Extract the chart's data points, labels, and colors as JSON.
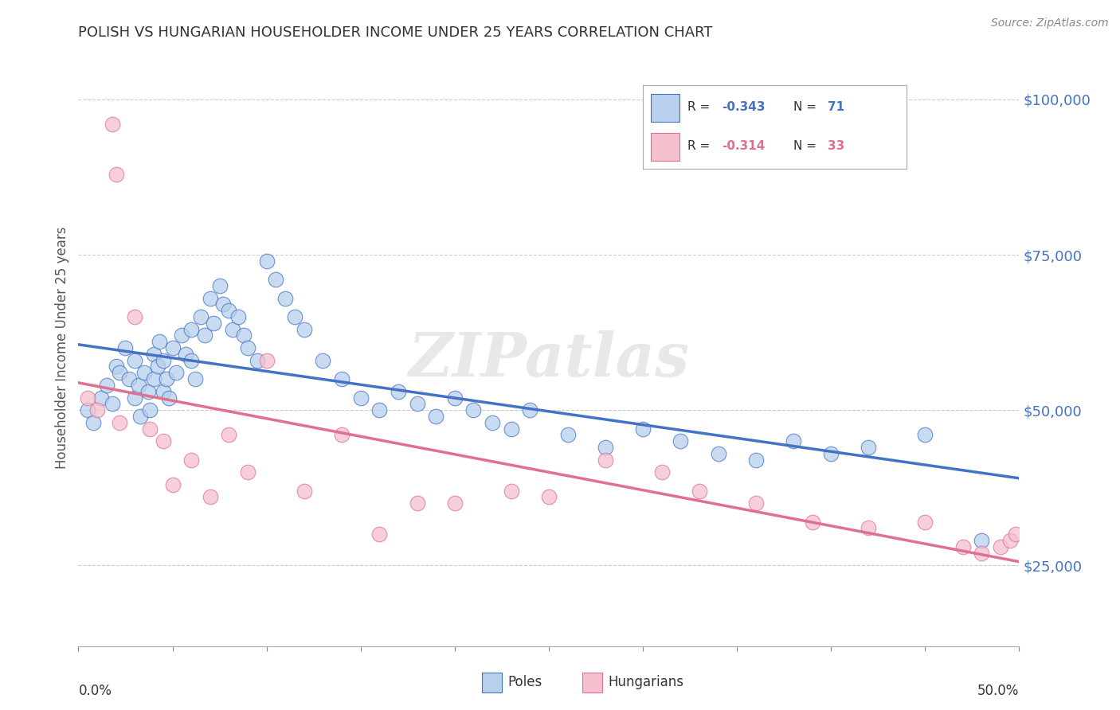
{
  "title": "POLISH VS HUNGARIAN HOUSEHOLDER INCOME UNDER 25 YEARS CORRELATION CHART",
  "source": "Source: ZipAtlas.com",
  "ylabel": "Householder Income Under 25 years",
  "xlim": [
    0.0,
    0.5
  ],
  "ylim": [
    12000,
    108000
  ],
  "yticks": [
    25000,
    50000,
    75000,
    100000
  ],
  "ytick_labels": [
    "$25,000",
    "$50,000",
    "$75,000",
    "$100,000"
  ],
  "legend_r_polish": "-0.343",
  "legend_n_polish": "71",
  "legend_r_hungarian": "-0.314",
  "legend_n_hungarian": "33",
  "polish_fill": "#b8d0eb",
  "hungarian_fill": "#f5c0ce",
  "polish_edge": "#4472c4",
  "hungarian_edge": "#e07090",
  "polish_line": "#4472c4",
  "hungarian_line": "#e07090",
  "bg": "#ffffff",
  "grid_color": "#cccccc",
  "title_color": "#333333",
  "source_color": "#888888",
  "ytick_color": "#4472c4",
  "watermark": "ZIPatlas",
  "poles_x": [
    0.005,
    0.008,
    0.012,
    0.015,
    0.018,
    0.02,
    0.022,
    0.025,
    0.027,
    0.03,
    0.03,
    0.032,
    0.033,
    0.035,
    0.037,
    0.038,
    0.04,
    0.04,
    0.042,
    0.043,
    0.045,
    0.045,
    0.047,
    0.048,
    0.05,
    0.052,
    0.055,
    0.057,
    0.06,
    0.06,
    0.062,
    0.065,
    0.067,
    0.07,
    0.072,
    0.075,
    0.077,
    0.08,
    0.082,
    0.085,
    0.088,
    0.09,
    0.095,
    0.1,
    0.105,
    0.11,
    0.115,
    0.12,
    0.13,
    0.14,
    0.15,
    0.16,
    0.17,
    0.18,
    0.19,
    0.2,
    0.21,
    0.22,
    0.23,
    0.24,
    0.26,
    0.28,
    0.3,
    0.32,
    0.34,
    0.36,
    0.38,
    0.4,
    0.42,
    0.45,
    0.48
  ],
  "poles_y": [
    50000,
    48000,
    52000,
    54000,
    51000,
    57000,
    56000,
    60000,
    55000,
    58000,
    52000,
    54000,
    49000,
    56000,
    53000,
    50000,
    59000,
    55000,
    57000,
    61000,
    53000,
    58000,
    55000,
    52000,
    60000,
    56000,
    62000,
    59000,
    63000,
    58000,
    55000,
    65000,
    62000,
    68000,
    64000,
    70000,
    67000,
    66000,
    63000,
    65000,
    62000,
    60000,
    58000,
    74000,
    71000,
    68000,
    65000,
    63000,
    58000,
    55000,
    52000,
    50000,
    53000,
    51000,
    49000,
    52000,
    50000,
    48000,
    47000,
    50000,
    46000,
    44000,
    47000,
    45000,
    43000,
    42000,
    45000,
    43000,
    44000,
    46000,
    29000
  ],
  "hung_x": [
    0.005,
    0.01,
    0.018,
    0.02,
    0.022,
    0.03,
    0.038,
    0.045,
    0.05,
    0.06,
    0.07,
    0.08,
    0.09,
    0.1,
    0.12,
    0.14,
    0.16,
    0.18,
    0.2,
    0.23,
    0.25,
    0.28,
    0.31,
    0.33,
    0.36,
    0.39,
    0.42,
    0.45,
    0.47,
    0.48,
    0.49,
    0.495,
    0.498
  ],
  "hung_y": [
    52000,
    50000,
    96000,
    88000,
    48000,
    65000,
    47000,
    45000,
    38000,
    42000,
    36000,
    46000,
    40000,
    58000,
    37000,
    46000,
    30000,
    35000,
    35000,
    37000,
    36000,
    42000,
    40000,
    37000,
    35000,
    32000,
    31000,
    32000,
    28000,
    27000,
    28000,
    29000,
    30000
  ]
}
